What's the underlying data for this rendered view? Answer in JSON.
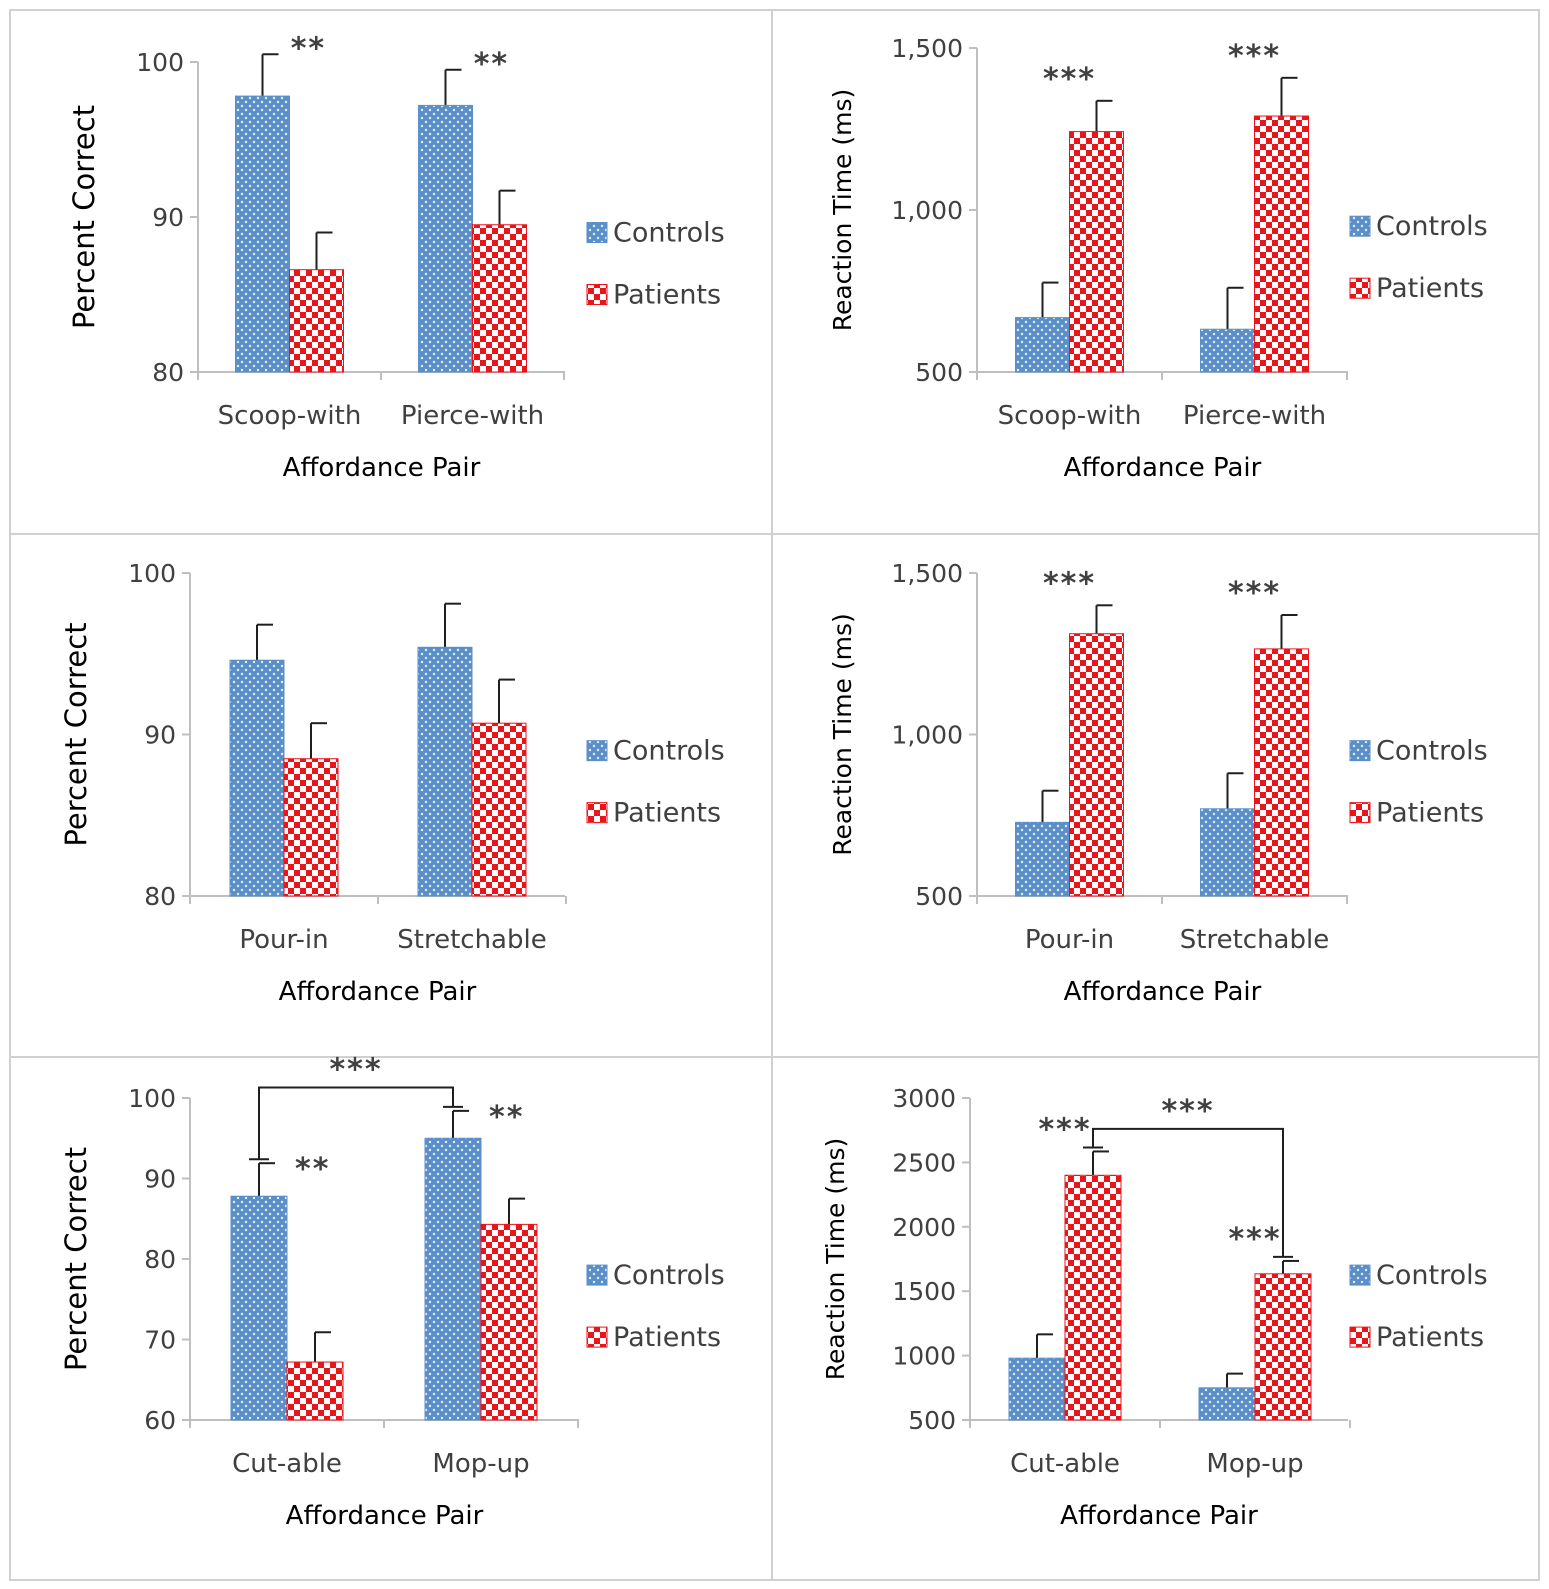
{
  "colors": {
    "controls": "#5b8fc9",
    "controls_dots": "#e4eefa",
    "patients": "#e8161b",
    "patients_light": "#ffffff",
    "axis": "#bfbfbf",
    "error_bar": "#1f1f1f",
    "text": "#404040",
    "axis_title_text": "#000000",
    "panel_border": "#d0d0d0"
  },
  "chart_data": [
    {
      "type": "bar",
      "panel": "row1-left",
      "measure": "accuracy",
      "categories": [
        "Scoop-with",
        "Pierce-with"
      ],
      "series": [
        {
          "name": "Controls",
          "values": [
            97.8,
            97.2
          ],
          "errors": [
            2.7,
            2.3
          ]
        },
        {
          "name": "Patients",
          "values": [
            86.6,
            89.5
          ],
          "errors": [
            2.4,
            2.2
          ]
        }
      ],
      "xlabel": "Affordance Pair",
      "ylabel": "Percent Correct",
      "ylim": [
        80,
        100
      ],
      "yticks": [
        "80",
        "90",
        "100"
      ],
      "legend": [
        "Controls",
        "Patients"
      ],
      "legend_position": "right",
      "annotations": [
        {
          "text": "**",
          "category": 0
        },
        {
          "text": "**",
          "category": 1
        }
      ],
      "brackets": []
    },
    {
      "type": "bar",
      "panel": "row1-right",
      "measure": "reaction-time",
      "categories": [
        "Scoop-with",
        "Pierce-with"
      ],
      "series": [
        {
          "name": "Controls",
          "values": [
            668,
            632
          ],
          "errors": [
            108,
            128
          ]
        },
        {
          "name": "Patients",
          "values": [
            1242,
            1290
          ],
          "errors": [
            95,
            118
          ]
        }
      ],
      "xlabel": "Affordance Pair",
      "ylabel": "Reaction Time (ms)",
      "ylim": [
        500,
        1500
      ],
      "yticks": [
        "500",
        "1,000",
        "1,500"
      ],
      "legend": [
        "Controls",
        "Patients"
      ],
      "legend_position": "right",
      "annotations": [
        {
          "text": "***",
          "category": 0
        },
        {
          "text": "***",
          "category": 1
        }
      ],
      "brackets": []
    },
    {
      "type": "bar",
      "panel": "row2-left",
      "measure": "accuracy",
      "categories": [
        "Pour-in",
        "Stretchable"
      ],
      "series": [
        {
          "name": "Controls",
          "values": [
            94.6,
            95.4
          ],
          "errors": [
            2.2,
            2.7
          ]
        },
        {
          "name": "Patients",
          "values": [
            88.5,
            90.7
          ],
          "errors": [
            2.2,
            2.7
          ]
        }
      ],
      "xlabel": "Affordance Pair",
      "ylabel": "Percent Correct",
      "ylim": [
        80,
        100
      ],
      "yticks": [
        "80",
        "90",
        "100"
      ],
      "legend": [
        "Controls",
        "Patients"
      ],
      "legend_position": "right",
      "annotations": [],
      "brackets": []
    },
    {
      "type": "bar",
      "panel": "row2-right",
      "measure": "reaction-time",
      "categories": [
        "Pour-in",
        "Stretchable"
      ],
      "series": [
        {
          "name": "Controls",
          "values": [
            728,
            770
          ],
          "errors": [
            98,
            110
          ]
        },
        {
          "name": "Patients",
          "values": [
            1312,
            1265
          ],
          "errors": [
            88,
            105
          ]
        }
      ],
      "xlabel": "Affordance Pair",
      "ylabel": "Reaction Time (ms)",
      "ylim": [
        500,
        1500
      ],
      "yticks": [
        "500",
        "1,000",
        "1,500"
      ],
      "legend": [
        "Controls",
        "Patients"
      ],
      "legend_position": "right",
      "annotations": [
        {
          "text": "***",
          "category": 0
        },
        {
          "text": "***",
          "category": 1
        }
      ],
      "brackets": []
    },
    {
      "type": "bar",
      "panel": "row3-left",
      "measure": "accuracy",
      "categories": [
        "Cut-able",
        "Mop-up"
      ],
      "series": [
        {
          "name": "Controls",
          "values": [
            87.8,
            95.0
          ],
          "errors": [
            4.1,
            3.4
          ]
        },
        {
          "name": "Patients",
          "values": [
            67.2,
            84.3
          ],
          "errors": [
            3.7,
            3.2
          ]
        }
      ],
      "xlabel": "Affordance Pair",
      "ylabel": "Percent Correct",
      "ylim": [
        60,
        100
      ],
      "yticks": [
        "60",
        "70",
        "80",
        "90",
        "100"
      ],
      "legend": [
        "Controls",
        "Patients"
      ],
      "legend_position": "right",
      "annotations": [
        {
          "text": "**",
          "category": 0
        },
        {
          "text": "**",
          "category": 1
        }
      ],
      "brackets": [
        {
          "text": "***",
          "from_category": 0,
          "to_category": 1,
          "series": "Controls",
          "level": 101.3
        }
      ]
    },
    {
      "type": "bar",
      "panel": "row3-right",
      "measure": "reaction-time",
      "categories": [
        "Cut-able",
        "Mop-up"
      ],
      "series": [
        {
          "name": "Controls",
          "values": [
            980,
            750
          ],
          "errors": [
            185,
            110
          ]
        },
        {
          "name": "Patients",
          "values": [
            2400,
            1635
          ],
          "errors": [
            185,
            100
          ]
        }
      ],
      "xlabel": "Affordance Pair",
      "ylabel": "Reaction Time (ms)",
      "ylim": [
        500,
        3000
      ],
      "yticks": [
        "500",
        "1000",
        "1500",
        "2000",
        "2500",
        "3000"
      ],
      "legend": [
        "Controls",
        "Patients"
      ],
      "legend_position": "right",
      "annotations": [
        {
          "text": "***",
          "category": 0
        },
        {
          "text": "***",
          "category": 1
        }
      ],
      "brackets": [
        {
          "text": "***",
          "from_category": 0,
          "to_category": 1,
          "series": "Patients",
          "level": 2760
        }
      ]
    }
  ]
}
